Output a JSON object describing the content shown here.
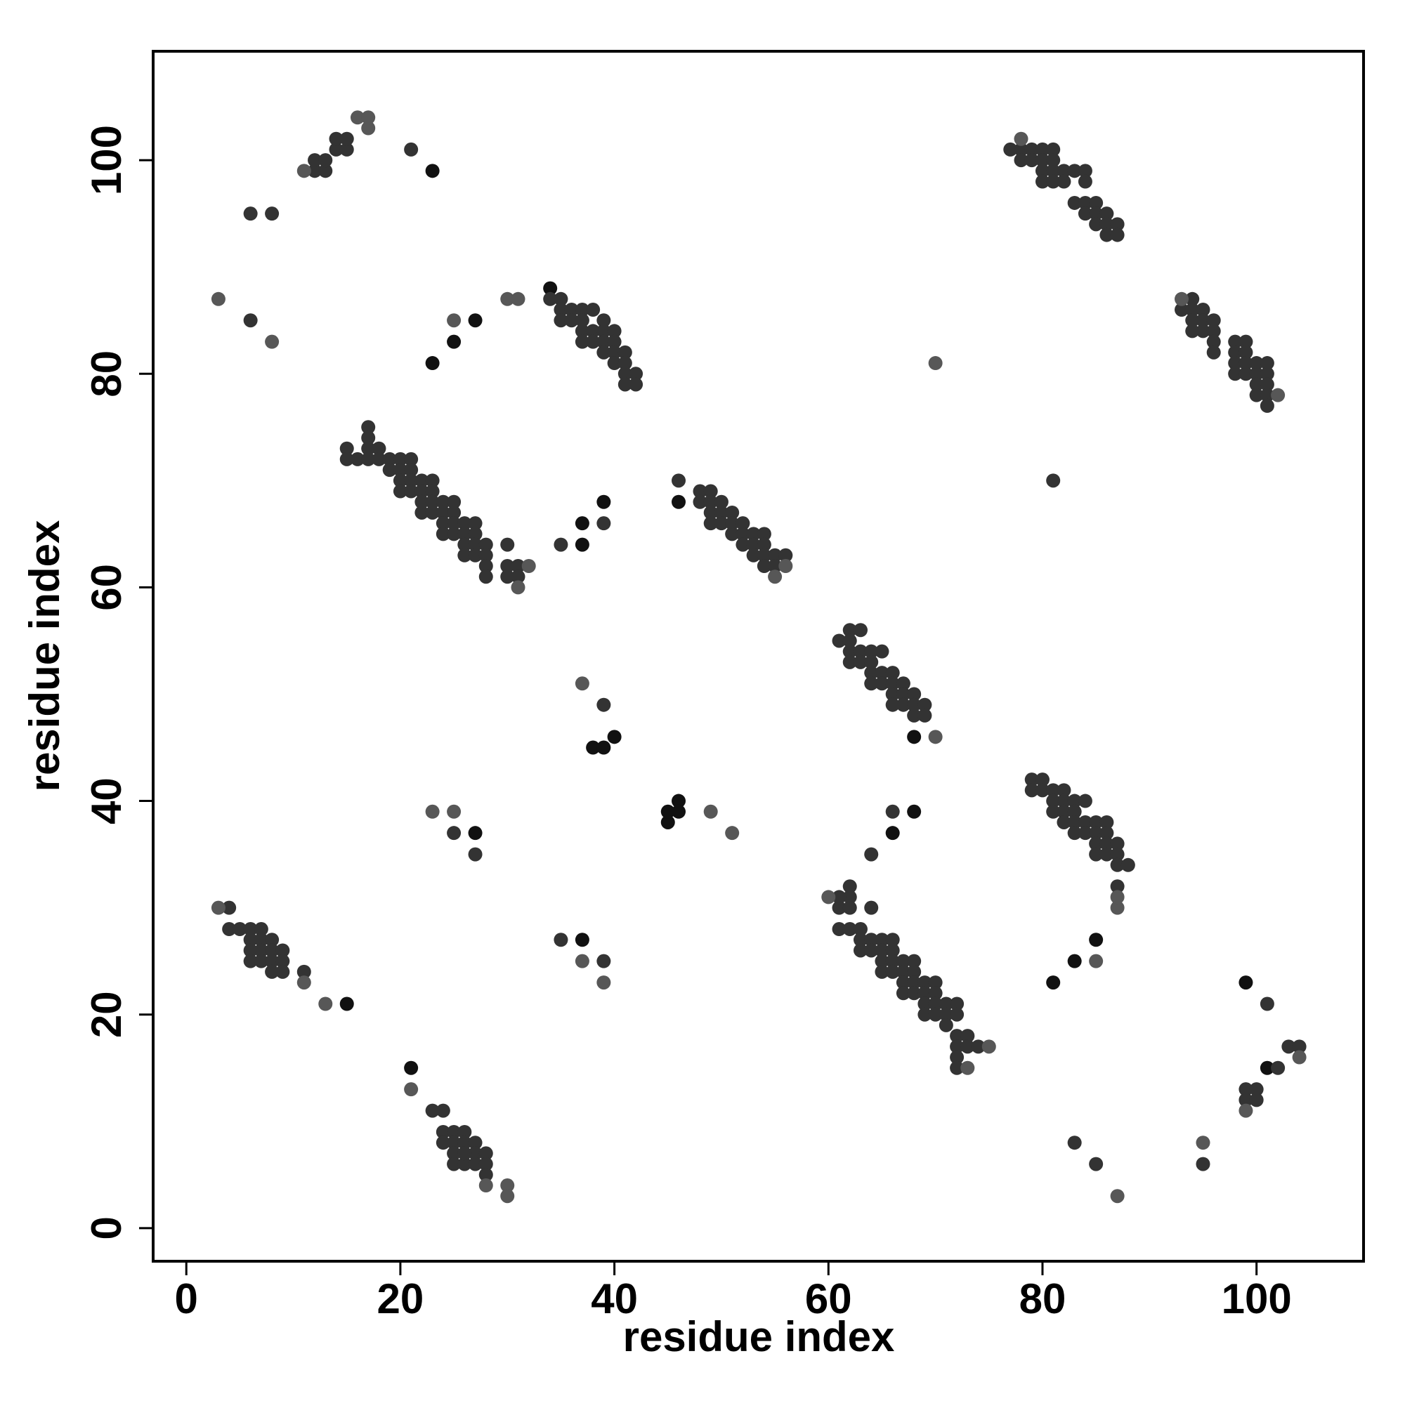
{
  "chart_data": {
    "type": "scatter",
    "xlabel": "residue index",
    "ylabel": "residue index",
    "xlim": [
      -3.1,
      110
    ],
    "ylim": [
      -3.1,
      110.2
    ],
    "xticks": [
      0,
      20,
      40,
      60,
      80,
      100
    ],
    "yticks": [
      0,
      20,
      40,
      60,
      80,
      100
    ],
    "series": [
      {
        "color": "#111111",
        "x": [
          15,
          23,
          23,
          25,
          27,
          21,
          37,
          37,
          39,
          38,
          39,
          40,
          45,
          45,
          46,
          46,
          46,
          68,
          27,
          37,
          81,
          83,
          85,
          34,
          68,
          66,
          99,
          101
        ],
        "y": [
          21,
          99,
          81,
          83,
          85,
          15,
          66,
          64,
          68,
          45,
          45,
          46,
          38,
          39,
          40,
          39,
          68,
          46,
          37,
          27,
          23,
          25,
          27,
          88,
          39,
          37,
          23,
          15
        ]
      },
      {
        "color": "#333333",
        "x": [
          4,
          4,
          5,
          6,
          6,
          7,
          7,
          6,
          7,
          8,
          8,
          6,
          7,
          8,
          9,
          8,
          9,
          9,
          11,
          24,
          23,
          24,
          24,
          25,
          25,
          26,
          25,
          26,
          25,
          26,
          27,
          27,
          26,
          27,
          28,
          28,
          28,
          6,
          8,
          12,
          12,
          13,
          13,
          14,
          14,
          15,
          15,
          21,
          6,
          15,
          15,
          16,
          17,
          17,
          17,
          17,
          18,
          18,
          19,
          19,
          20,
          20,
          20,
          20,
          21,
          21,
          21,
          21,
          22,
          22,
          22,
          22,
          23,
          23,
          23,
          23,
          24,
          24,
          24,
          24,
          25,
          25,
          25,
          25,
          26,
          26,
          26,
          26,
          27,
          27,
          27,
          27,
          28,
          28,
          28,
          28,
          30,
          30,
          30,
          31,
          31,
          34,
          35,
          35,
          35,
          36,
          36,
          37,
          37,
          37,
          37,
          38,
          38,
          38,
          39,
          39,
          39,
          39,
          40,
          40,
          40,
          40,
          41,
          41,
          41,
          41,
          42,
          42,
          35,
          39,
          39,
          27,
          25,
          35,
          39,
          48,
          48,
          49,
          49,
          49,
          49,
          50,
          50,
          50,
          51,
          51,
          51,
          52,
          52,
          52,
          53,
          53,
          53,
          54,
          54,
          54,
          54,
          55,
          55,
          56,
          46,
          61,
          62,
          62,
          62,
          62,
          63,
          63,
          63,
          64,
          64,
          64,
          64,
          65,
          65,
          65,
          66,
          66,
          66,
          66,
          67,
          67,
          67,
          68,
          68,
          68,
          69,
          69,
          64,
          66,
          81,
          61,
          61,
          62,
          62,
          62,
          62,
          63,
          63,
          63,
          64,
          64,
          64,
          65,
          65,
          65,
          65,
          66,
          66,
          66,
          66,
          67,
          67,
          67,
          67,
          68,
          68,
          68,
          68,
          69,
          69,
          69,
          69,
          70,
          70,
          70,
          70,
          71,
          71,
          71,
          72,
          72,
          72,
          72,
          72,
          72,
          73,
          73,
          74,
          61,
          79,
          79,
          80,
          80,
          81,
          81,
          81,
          82,
          82,
          82,
          82,
          83,
          83,
          83,
          83,
          84,
          84,
          84,
          85,
          85,
          85,
          85,
          86,
          86,
          86,
          86,
          87,
          87,
          87,
          88,
          87,
          83,
          85,
          77,
          78,
          78,
          79,
          79,
          80,
          80,
          80,
          80,
          81,
          81,
          81,
          81,
          82,
          82,
          83,
          83,
          84,
          84,
          84,
          84,
          85,
          85,
          85,
          86,
          86,
          86,
          87,
          87,
          93,
          94,
          94,
          94,
          94,
          95,
          95,
          95,
          96,
          96,
          96,
          96,
          98,
          98,
          98,
          98,
          99,
          99,
          99,
          99,
          100,
          100,
          100,
          100,
          101,
          101,
          101,
          101,
          101,
          95,
          101,
          99,
          99,
          100,
          100,
          102,
          103,
          104
        ],
        "y": [
          30,
          28,
          28,
          28,
          27,
          28,
          27,
          26,
          26,
          27,
          26,
          25,
          25,
          25,
          26,
          24,
          25,
          24,
          24,
          11,
          11,
          9,
          8,
          9,
          8,
          9,
          7,
          8,
          6,
          6,
          8,
          7,
          7,
          6,
          7,
          6,
          5,
          95,
          95,
          99,
          100,
          99,
          100,
          101,
          102,
          101,
          102,
          101,
          85,
          73,
          72,
          72,
          75,
          74,
          73,
          72,
          73,
          72,
          72,
          71,
          72,
          71,
          70,
          69,
          72,
          71,
          70,
          69,
          70,
          69,
          68,
          67,
          70,
          69,
          68,
          67,
          68,
          67,
          66,
          65,
          68,
          67,
          66,
          65,
          66,
          65,
          64,
          63,
          66,
          65,
          64,
          63,
          64,
          63,
          62,
          61,
          64,
          62,
          61,
          62,
          61,
          87,
          87,
          86,
          85,
          86,
          85,
          86,
          85,
          84,
          83,
          86,
          84,
          83,
          85,
          84,
          83,
          82,
          84,
          83,
          82,
          81,
          82,
          81,
          80,
          79,
          80,
          79,
          64,
          66,
          49,
          35,
          37,
          27,
          25,
          69,
          68,
          69,
          68,
          67,
          66,
          68,
          67,
          66,
          67,
          66,
          65,
          66,
          65,
          64,
          65,
          64,
          63,
          65,
          64,
          63,
          62,
          63,
          62,
          63,
          70,
          55,
          56,
          55,
          54,
          53,
          56,
          54,
          53,
          54,
          53,
          52,
          51,
          54,
          52,
          51,
          52,
          51,
          50,
          49,
          51,
          50,
          49,
          50,
          49,
          48,
          49,
          48,
          35,
          39,
          70,
          30,
          28,
          32,
          31,
          30,
          28,
          28,
          27,
          26,
          30,
          27,
          26,
          27,
          26,
          25,
          24,
          27,
          26,
          25,
          24,
          25,
          24,
          23,
          22,
          25,
          24,
          23,
          22,
          23,
          22,
          21,
          20,
          23,
          22,
          21,
          20,
          21,
          20,
          19,
          21,
          20,
          18,
          17,
          16,
          15,
          18,
          17,
          17,
          31,
          42,
          41,
          42,
          41,
          41,
          40,
          39,
          41,
          40,
          39,
          38,
          40,
          39,
          38,
          37,
          40,
          38,
          37,
          38,
          37,
          36,
          35,
          38,
          37,
          36,
          35,
          36,
          35,
          34,
          34,
          32,
          8,
          6,
          101,
          101,
          100,
          101,
          100,
          101,
          100,
          99,
          98,
          101,
          100,
          99,
          98,
          99,
          98,
          99,
          96,
          99,
          98,
          96,
          95,
          96,
          95,
          94,
          95,
          94,
          93,
          94,
          93,
          86,
          87,
          86,
          85,
          84,
          86,
          85,
          84,
          85,
          84,
          83,
          82,
          83,
          82,
          81,
          80,
          83,
          82,
          81,
          80,
          81,
          80,
          79,
          78,
          81,
          80,
          79,
          78,
          77,
          6,
          21,
          13,
          12,
          13,
          12,
          15,
          17,
          17
        ]
      },
      {
        "color": "#575757",
        "x": [
          3,
          8,
          25,
          30,
          31,
          16,
          17,
          17,
          11,
          37,
          23,
          25,
          51,
          49,
          37,
          39,
          3,
          21,
          70,
          70,
          87,
          85,
          95,
          13,
          11,
          30,
          30,
          28,
          60,
          102,
          104,
          99,
          93,
          78,
          56,
          55,
          32,
          31,
          75,
          73,
          87,
          87
        ],
        "y": [
          87,
          83,
          85,
          87,
          87,
          104,
          103,
          104,
          99,
          51,
          39,
          39,
          37,
          39,
          25,
          23,
          30,
          13,
          46,
          81,
          3,
          25,
          8,
          21,
          23,
          4,
          3,
          4,
          31,
          78,
          16,
          11,
          87,
          102,
          62,
          61,
          62,
          60,
          17,
          15,
          30,
          31
        ]
      }
    ]
  }
}
